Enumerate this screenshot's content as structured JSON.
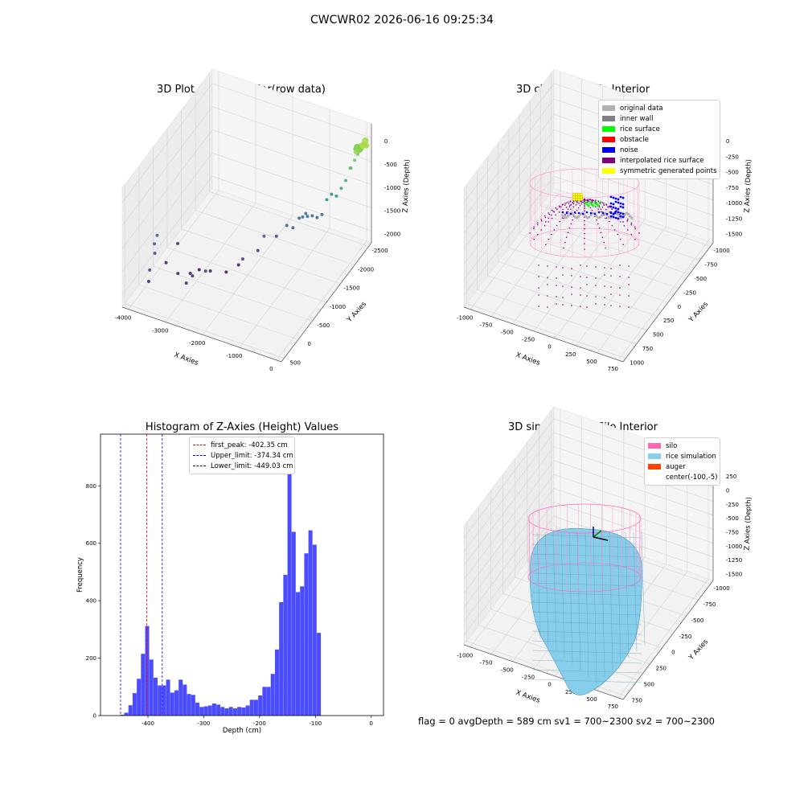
{
  "suptitle": "CWCWR02 2026-06-16 09:25:34",
  "footer": "flag = 0     avgDepth = 589 cm  sv1 = 700~2300  sv2 = 700~2300",
  "colors": {
    "original_data": "#b0b0b0",
    "inner_wall": "#808080",
    "rice_surface": "#00ff00",
    "obstacle": "#ff0000",
    "noise": "#0000ff",
    "interpolated_rice_surface": "#800080",
    "symmetric_generated_points": "#ffff00",
    "silo": "#ff69b4",
    "rice_simulation": "#87ceeb",
    "auger": "#ff4500",
    "histogram_bars": "#0000ff",
    "first_peak_line": "#ff0000",
    "limit_lines": "#0000ff"
  },
  "chart_data": [
    {
      "type": "scatter",
      "title": "3D Plot of Silo Interior(row data)",
      "xlabel": "X Axies",
      "ylabel": "Y Axies",
      "zlabel": "Z Axies (Depth)",
      "x_ticks": [
        "-4000",
        "-3000",
        "-2000",
        "-1000",
        "0"
      ],
      "y_ticks": [
        "500",
        "0",
        "-500",
        "-1000",
        "-1500",
        "-2000",
        "-2500"
      ],
      "z_ticks": [
        "0",
        "-500",
        "-1000",
        "-1500",
        "-2000"
      ],
      "xlim": [
        -4300,
        300
      ],
      "ylim": [
        -2700,
        600
      ],
      "zlim": [
        -2400,
        100
      ],
      "points": [
        [
          -4000,
          -300,
          -1500
        ],
        [
          -4000,
          -200,
          -1600
        ],
        [
          -3950,
          -150,
          -1750
        ],
        [
          -3900,
          100,
          -1900
        ],
        [
          -3850,
          200,
          -2050
        ],
        [
          -3900,
          -500,
          -2200
        ],
        [
          -3800,
          -800,
          -2000
        ],
        [
          -3400,
          -300,
          -2150
        ],
        [
          -3200,
          -500,
          -2250
        ],
        [
          -3100,
          -700,
          -2300
        ],
        [
          -3000,
          -100,
          -2100
        ],
        [
          -2900,
          -200,
          -2000
        ],
        [
          -2700,
          -600,
          -2150
        ],
        [
          -2600,
          -300,
          -1900
        ],
        [
          -2400,
          -800,
          -2250
        ],
        [
          -2200,
          -1000,
          -2200
        ],
        [
          -2000,
          -900,
          -1950
        ],
        [
          -1800,
          -1200,
          -1950
        ],
        [
          -1700,
          -1300,
          -1700
        ],
        [
          -1500,
          -1500,
          -1800
        ],
        [
          -1200,
          -1500,
          -1500
        ],
        [
          -1100,
          -1600,
          -1600
        ],
        [
          -1000,
          -1700,
          -1450
        ],
        [
          -900,
          -1700,
          -1400
        ],
        [
          -850,
          -1750,
          -1350
        ],
        [
          -800,
          -1750,
          -1400
        ],
        [
          -700,
          -1800,
          -1400
        ],
        [
          -600,
          -1850,
          -1450
        ],
        [
          -500,
          -1900,
          -1400
        ],
        [
          -400,
          -1950,
          -1100
        ],
        [
          -300,
          -2000,
          -1000
        ],
        [
          -200,
          -2050,
          -1050
        ],
        [
          -100,
          -2100,
          -900
        ],
        [
          -50,
          -2200,
          -800
        ],
        [
          0,
          -2300,
          -600
        ],
        [
          50,
          -2400,
          -500
        ],
        [
          100,
          -2450,
          -400
        ],
        [
          150,
          -2500,
          -300
        ],
        [
          200,
          -2550,
          -250
        ],
        [
          200,
          -2600,
          -200
        ],
        [
          250,
          -2400,
          -150
        ],
        [
          250,
          -2300,
          -100
        ],
        [
          100,
          -2500,
          -350
        ],
        [
          -100,
          -2600,
          -450
        ],
        [
          0,
          -2550,
          -350
        ],
        [
          150,
          -2350,
          -250
        ],
        [
          300,
          -2500,
          -200
        ],
        [
          100,
          -2200,
          -500
        ]
      ]
    },
    {
      "type": "scatter",
      "title": "3D classify of Silo Interior",
      "xlabel": "X Axies",
      "ylabel": "Y Axies",
      "zlabel": "Z Axies (Depth)",
      "x_ticks": [
        "-1000",
        "-750",
        "-500",
        "-250",
        "0",
        "250",
        "500",
        "750"
      ],
      "y_ticks": [
        "1000",
        "750",
        "500",
        "250",
        "0",
        "-250",
        "-500",
        "-750",
        "-1000"
      ],
      "z_ticks": [
        "0",
        "-250",
        "-500",
        "-750",
        "-1000",
        "-1250",
        "-1500"
      ],
      "xlim": [
        -1100,
        900
      ],
      "ylim": [
        -1050,
        1050
      ],
      "zlim": [
        -1650,
        100
      ],
      "legend": [
        "original data",
        "inner wall",
        "rice surface",
        "obstacle",
        "noise",
        "interpolated rice surface",
        "symmetric generated points"
      ],
      "legend_position": "top-right"
    },
    {
      "type": "bar",
      "title": "Histogram of Z-Axies (Height) Values",
      "xlabel": "Depth (cm)",
      "ylabel": "Frequency",
      "xlim": [
        -485,
        22
      ],
      "ylim": [
        0,
        980
      ],
      "x_ticks": [
        -400,
        -300,
        -200,
        -100,
        0
      ],
      "y_ticks": [
        0,
        200,
        400,
        600,
        800
      ],
      "bin_start": -450,
      "bin_width": 7.5,
      "values": [
        3,
        10,
        36,
        78,
        128,
        215,
        312,
        195,
        132,
        105,
        105,
        125,
        80,
        88,
        125,
        108,
        75,
        72,
        45,
        30,
        32,
        35,
        42,
        38,
        30,
        25,
        30,
        25,
        30,
        28,
        35,
        55,
        55,
        70,
        100,
        100,
        145,
        230,
        395,
        490,
        935,
        640,
        430,
        450,
        565,
        645,
        595,
        288
      ],
      "lines": [
        {
          "label": "first_peak: -402.35 cm",
          "x": -402.35,
          "color": "#ff0000"
        },
        {
          "label": "Upper_limit: -374.34 cm",
          "x": -374.34,
          "color": "#0000ff"
        },
        {
          "label": "Lower_limit: -449.03 cm",
          "x": -449.03,
          "color": "#0000ff"
        }
      ],
      "legend_position": "top-center"
    },
    {
      "type": "surface",
      "title": "3D simulation of Silo Interior",
      "xlabel": "X Axies",
      "ylabel": "Y Axies",
      "zlabel": "Z Axies (Depth)",
      "x_ticks": [
        "-1000",
        "-750",
        "-500",
        "-250",
        "0",
        "250",
        "500",
        "750"
      ],
      "y_ticks": [
        "750",
        "500",
        "250",
        "0",
        "-250",
        "-500",
        "-750",
        "-1000"
      ],
      "z_ticks": [
        "250",
        "0",
        "-250",
        "-500",
        "-750",
        "-1000",
        "-1250",
        "-1500"
      ],
      "xlim": [
        -1100,
        900
      ],
      "ylim": [
        -1050,
        900
      ],
      "zlim": [
        -1650,
        400
      ],
      "legend": [
        "silo",
        "rice simulation",
        "auger",
        "center(-100,-5)"
      ],
      "legend_position": "top-right"
    }
  ]
}
